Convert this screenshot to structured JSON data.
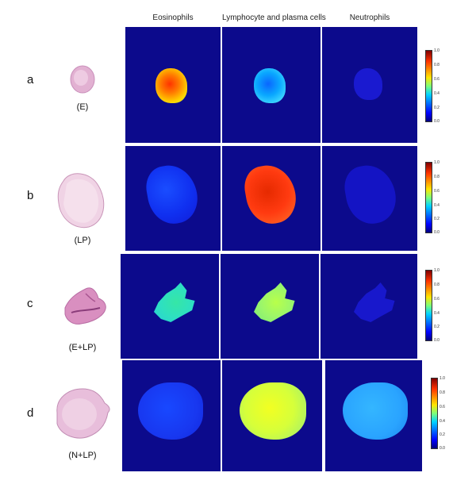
{
  "columns": [
    "Eosinophils",
    "Lymphocyte and plasma cells",
    "Neutrophils"
  ],
  "rows": [
    {
      "letter": "a",
      "condition": "(E)",
      "ticks": [
        "1.0",
        "0.8",
        "0.6",
        "0.4",
        "0.2",
        "0.0"
      ]
    },
    {
      "letter": "b",
      "condition": "(LP)",
      "ticks": [
        "1.0",
        "0.8",
        "0.6",
        "0.4",
        "0.2",
        "0.0"
      ]
    },
    {
      "letter": "c",
      "condition": "(E+LP)",
      "ticks": [
        "1.0",
        "0.8",
        "0.6",
        "0.4",
        "0.2",
        "0.0"
      ]
    },
    {
      "letter": "d",
      "condition": "(N+LP)",
      "ticks": [
        "1.0",
        "0.8",
        "0.6",
        "0.4",
        "0.2",
        "0.0"
      ]
    }
  ],
  "colors": {
    "background": "#0c0a8c",
    "tissue_stain": "#e9b8d8"
  }
}
